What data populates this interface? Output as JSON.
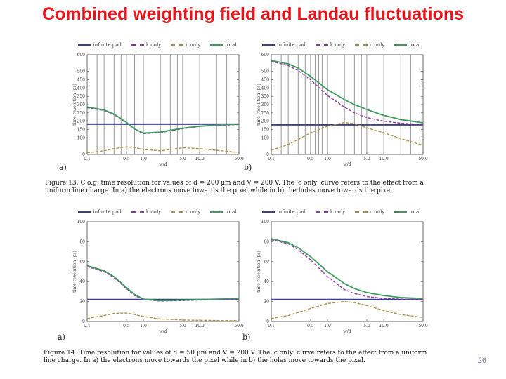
{
  "slide": {
    "title": "Combined weighting field and Landau fluctuations",
    "page_number": "26"
  },
  "legend": {
    "infinite_pad": "infinite pad",
    "k_only": "k only",
    "c_only": "c only",
    "total": "total"
  },
  "colors": {
    "infinite_pad": "#3b3f8f",
    "k_only": "#8e3aa6",
    "c_only": "#a8954a",
    "total": "#3e9a5e"
  },
  "captions": {
    "fig13": "Figure 13: C.o.g. time resolution for values of d = 200 μm and V = 200 V. The 'c only' curve refers to the effect from a uniform line charge. In a) the electrons move towards the pixel while in b) the holes move towards the pixel.",
    "fig14": "Figure 14: Time resolution for values of d = 50 μm and V = 200 V. The 'c only' curve refers to the effect from a uniform line charge. In a) the electrons move towards the pixel while in b) the holes move towards the pixel."
  },
  "panel_labels": {
    "a": "a)",
    "b": "b)"
  },
  "chart_data": [
    {
      "type": "line",
      "id": "fig13a",
      "xscale": "log",
      "xlim": [
        0.1,
        50.0
      ],
      "xticks": [
        0.1,
        0.5,
        1.0,
        5.0,
        10.0,
        50.0
      ],
      "xtick_labels": [
        "0.1",
        "0.5",
        "1.0",
        "5.0",
        "10.0",
        "50.0"
      ],
      "ylim": [
        0,
        600
      ],
      "yticks": [
        0,
        100,
        150,
        200,
        250,
        300,
        350,
        400,
        450,
        500,
        600
      ],
      "ytick_labels": [
        "0",
        "100",
        "150",
        "200",
        "250",
        "300",
        "350",
        "400",
        "450",
        "500",
        "600"
      ],
      "xlabel": "w/d",
      "ylabel": "time resolution (ps)",
      "vlines": [
        0.15,
        0.2,
        0.3,
        0.4,
        0.5,
        0.6,
        0.7,
        0.8,
        0.9,
        1.0,
        2.0,
        3.0,
        4.0,
        5.0,
        10.0,
        20.0,
        30.0
      ],
      "x": [
        0.1,
        0.2,
        0.3,
        0.5,
        0.7,
        1.0,
        2.0,
        5.0,
        10.0,
        20.0,
        50.0
      ],
      "series": [
        {
          "name": "infinite pad",
          "values": [
            182,
            182,
            182,
            182,
            182,
            182,
            182,
            182,
            182,
            182,
            182
          ]
        },
        {
          "name": "k only",
          "values": [
            282,
            265,
            240,
            190,
            150,
            125,
            132,
            155,
            168,
            175,
            180
          ]
        },
        {
          "name": "c only",
          "values": [
            10,
            22,
            35,
            45,
            42,
            30,
            22,
            40,
            35,
            25,
            12
          ]
        },
        {
          "name": "total",
          "values": [
            285,
            268,
            243,
            193,
            153,
            128,
            135,
            158,
            170,
            177,
            183
          ]
        }
      ]
    },
    {
      "type": "line",
      "id": "fig13b",
      "xscale": "log",
      "xlim": [
        0.1,
        50.0
      ],
      "xticks": [
        0.1,
        0.5,
        1.0,
        5.0,
        10.0,
        50.0
      ],
      "xtick_labels": [
        "0.1",
        "0.5",
        "1.0",
        "5.0",
        "10.0",
        "50.0"
      ],
      "ylim": [
        0,
        600
      ],
      "yticks": [
        0,
        100,
        150,
        200,
        250,
        300,
        350,
        400,
        450,
        500,
        600
      ],
      "ytick_labels": [
        "0",
        "100",
        "150",
        "200",
        "250",
        "300",
        "350",
        "400",
        "450",
        "500",
        "600"
      ],
      "xlabel": "w/d",
      "ylabel": "time resolution (ps)",
      "vlines": [
        0.15,
        0.2,
        0.3,
        0.4,
        0.5,
        0.6,
        0.7,
        0.8,
        0.9,
        1.0,
        2.0,
        3.0,
        4.0,
        5.0,
        10.0,
        20.0,
        30.0
      ],
      "x": [
        0.1,
        0.2,
        0.3,
        0.5,
        1.0,
        2.0,
        3.0,
        5.0,
        10.0,
        20.0,
        50.0
      ],
      "series": [
        {
          "name": "infinite pad",
          "values": [
            178,
            178,
            178,
            178,
            178,
            178,
            178,
            178,
            178,
            178,
            178
          ]
        },
        {
          "name": "k only",
          "values": [
            560,
            535,
            505,
            450,
            355,
            285,
            250,
            222,
            200,
            188,
            180
          ]
        },
        {
          "name": "c only",
          "values": [
            25,
            60,
            90,
            130,
            170,
            192,
            185,
            160,
            130,
            95,
            55
          ]
        },
        {
          "name": "total",
          "values": [
            565,
            545,
            520,
            470,
            390,
            330,
            300,
            270,
            235,
            210,
            190
          ]
        }
      ]
    },
    {
      "type": "line",
      "id": "fig14a",
      "xscale": "log",
      "xlim": [
        0.1,
        50.0
      ],
      "xticks": [
        0.1,
        0.5,
        1.0,
        5.0,
        10.0,
        50.0
      ],
      "xtick_labels": [
        "0.1",
        "0.5",
        "1.0",
        "5.0",
        "10.0",
        "50.0"
      ],
      "ylim": [
        0,
        100
      ],
      "yticks": [
        0,
        20,
        40,
        60,
        80,
        100
      ],
      "ytick_labels": [
        "0",
        "20",
        "40",
        "60",
        "80",
        "100"
      ],
      "xlabel": "w/d",
      "ylabel": "time resolution (ps)",
      "vlines": [],
      "x": [
        0.1,
        0.2,
        0.3,
        0.5,
        0.7,
        1.0,
        2.0,
        5.0,
        10.0,
        20.0,
        50.0
      ],
      "series": [
        {
          "name": "infinite pad",
          "values": [
            22,
            22,
            22,
            22,
            22,
            22,
            22,
            22,
            22,
            22,
            22
          ]
        },
        {
          "name": "k only",
          "values": [
            55,
            50,
            44,
            33,
            26,
            22,
            20.5,
            21,
            21.5,
            22,
            22
          ]
        },
        {
          "name": "c only",
          "values": [
            3,
            6,
            8,
            8.5,
            7,
            5,
            2.5,
            1.5,
            1.2,
            1,
            0.8
          ]
        },
        {
          "name": "total",
          "values": [
            56,
            51,
            45,
            34,
            27,
            22.5,
            21,
            21.5,
            22,
            22.5,
            23
          ]
        }
      ]
    },
    {
      "type": "line",
      "id": "fig14b",
      "xscale": "log",
      "xlim": [
        0.1,
        50.0
      ],
      "xticks": [
        0.1,
        0.5,
        1.0,
        5.0,
        10.0,
        50.0
      ],
      "xtick_labels": [
        "0.1",
        "0.5",
        "1.0",
        "5.0",
        "10.0",
        "50.0"
      ],
      "ylim": [
        0,
        100
      ],
      "yticks": [
        0,
        20,
        40,
        60,
        80,
        100
      ],
      "ytick_labels": [
        "0",
        "20",
        "40",
        "60",
        "80",
        "100"
      ],
      "xlabel": "w/d",
      "ylabel": "time resolution (ps)",
      "vlines": [],
      "x": [
        0.1,
        0.2,
        0.3,
        0.5,
        1.0,
        2.0,
        3.0,
        5.0,
        10.0,
        20.0,
        50.0
      ],
      "series": [
        {
          "name": "infinite pad",
          "values": [
            22,
            22,
            22,
            22,
            22,
            22,
            22,
            22,
            22,
            22,
            22
          ]
        },
        {
          "name": "k only",
          "values": [
            82,
            78,
            72,
            62,
            45,
            32,
            28,
            25,
            23,
            22.5,
            22
          ]
        },
        {
          "name": "c only",
          "values": [
            3,
            6,
            9,
            13,
            18,
            20,
            19,
            16,
            11,
            7,
            4
          ]
        },
        {
          "name": "total",
          "values": [
            83,
            79,
            74,
            65,
            50,
            38,
            33,
            29,
            26,
            24,
            23
          ]
        }
      ]
    }
  ]
}
